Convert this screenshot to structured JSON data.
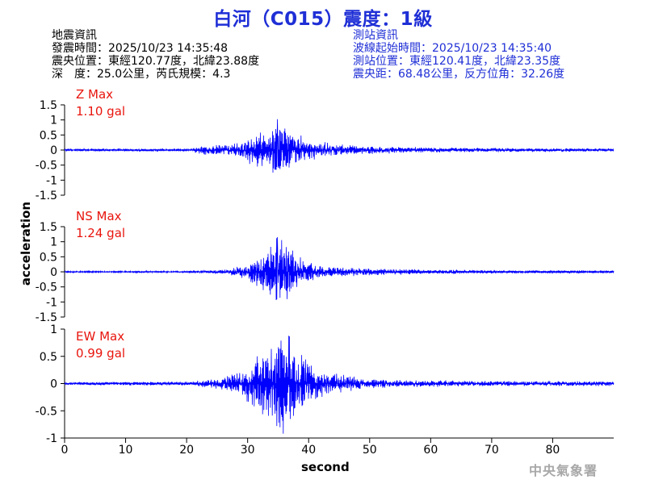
{
  "title": "白河（C015）震度：1級",
  "info_left": {
    "heading": "地震資訊",
    "origin_time": "發震時間：2025/10/23 14:35:48",
    "epicenter": "震央位置：東經120.77度，北緯23.88度",
    "depth_magnitude": "深　度：25.0公里，芮氏規模：4.3"
  },
  "info_right": {
    "heading": "測站資訊",
    "wave_start": "波線起始時間：2025/10/23 14:35:40",
    "station_location": "測站位置：東經120.41度，北緯23.35度",
    "distance": "震央距：68.48公里，反方位角：32.26度"
  },
  "agency": "中央氣象署",
  "colors": {
    "title": "#1f2fd6",
    "trace": "#0000ff",
    "label": "#e8150d",
    "station_info": "#1f2fd6"
  },
  "chart_data": {
    "type": "line",
    "xlabel": "second",
    "ylabel": "acceleration",
    "xlim": [
      0,
      90
    ],
    "xticks": [
      0,
      10,
      20,
      30,
      40,
      50,
      60,
      70,
      80
    ],
    "panels": [
      {
        "name": "Z",
        "label": "Z Max",
        "max_text": "1.10 gal",
        "max_value": 1.1,
        "ylim": [
          -1.5,
          1.5
        ],
        "yticks": [
          -1.5,
          -1,
          -0.5,
          0,
          0.5,
          1,
          1.5
        ],
        "ytick_labels": [
          "-1.5",
          "-1",
          "-0.5",
          "0",
          "0.5",
          "1",
          "1.5"
        ],
        "envelope": [
          [
            0,
            0.05
          ],
          [
            21,
            0.05
          ],
          [
            22,
            0.16
          ],
          [
            26,
            0.2
          ],
          [
            29,
            0.32
          ],
          [
            31,
            0.55
          ],
          [
            33,
            0.78
          ],
          [
            35,
            1.1
          ],
          [
            37,
            0.8
          ],
          [
            39,
            0.45
          ],
          [
            42,
            0.28
          ],
          [
            46,
            0.18
          ],
          [
            52,
            0.13
          ],
          [
            60,
            0.09
          ],
          [
            75,
            0.07
          ],
          [
            90,
            0.06
          ]
        ]
      },
      {
        "name": "NS",
        "label": "NS Max",
        "max_text": "1.24 gal",
        "max_value": 1.24,
        "ylim": [
          -1.5,
          1.5
        ],
        "yticks": [
          -1.5,
          -1,
          -0.5,
          0,
          0.5,
          1,
          1.5
        ],
        "ytick_labels": [
          "-1.5",
          "-1",
          "-0.5",
          "0",
          "0.5",
          "1",
          "1.5"
        ],
        "envelope": [
          [
            0,
            0.03
          ],
          [
            21,
            0.03
          ],
          [
            24,
            0.06
          ],
          [
            27,
            0.1
          ],
          [
            30,
            0.3
          ],
          [
            32,
            0.6
          ],
          [
            35,
            1.24
          ],
          [
            37,
            0.85
          ],
          [
            39,
            0.45
          ],
          [
            42,
            0.22
          ],
          [
            48,
            0.14
          ],
          [
            55,
            0.1
          ],
          [
            70,
            0.06
          ],
          [
            90,
            0.05
          ]
        ]
      },
      {
        "name": "EW",
        "label": "EW Max",
        "max_text": "0.99 gal",
        "max_value": 0.99,
        "ylim": [
          -1,
          1
        ],
        "yticks": [
          -1,
          -0.5,
          0,
          0.5,
          1
        ],
        "ytick_labels": [
          "-1",
          "-0.5",
          "0",
          "0.5",
          "1"
        ],
        "envelope": [
          [
            0,
            0.03
          ],
          [
            21,
            0.04
          ],
          [
            24,
            0.09
          ],
          [
            27,
            0.16
          ],
          [
            30,
            0.35
          ],
          [
            32,
            0.6
          ],
          [
            36,
            0.99
          ],
          [
            38,
            0.75
          ],
          [
            40,
            0.45
          ],
          [
            43,
            0.22
          ],
          [
            48,
            0.12
          ],
          [
            56,
            0.07
          ],
          [
            70,
            0.05
          ],
          [
            90,
            0.05
          ]
        ]
      }
    ]
  }
}
